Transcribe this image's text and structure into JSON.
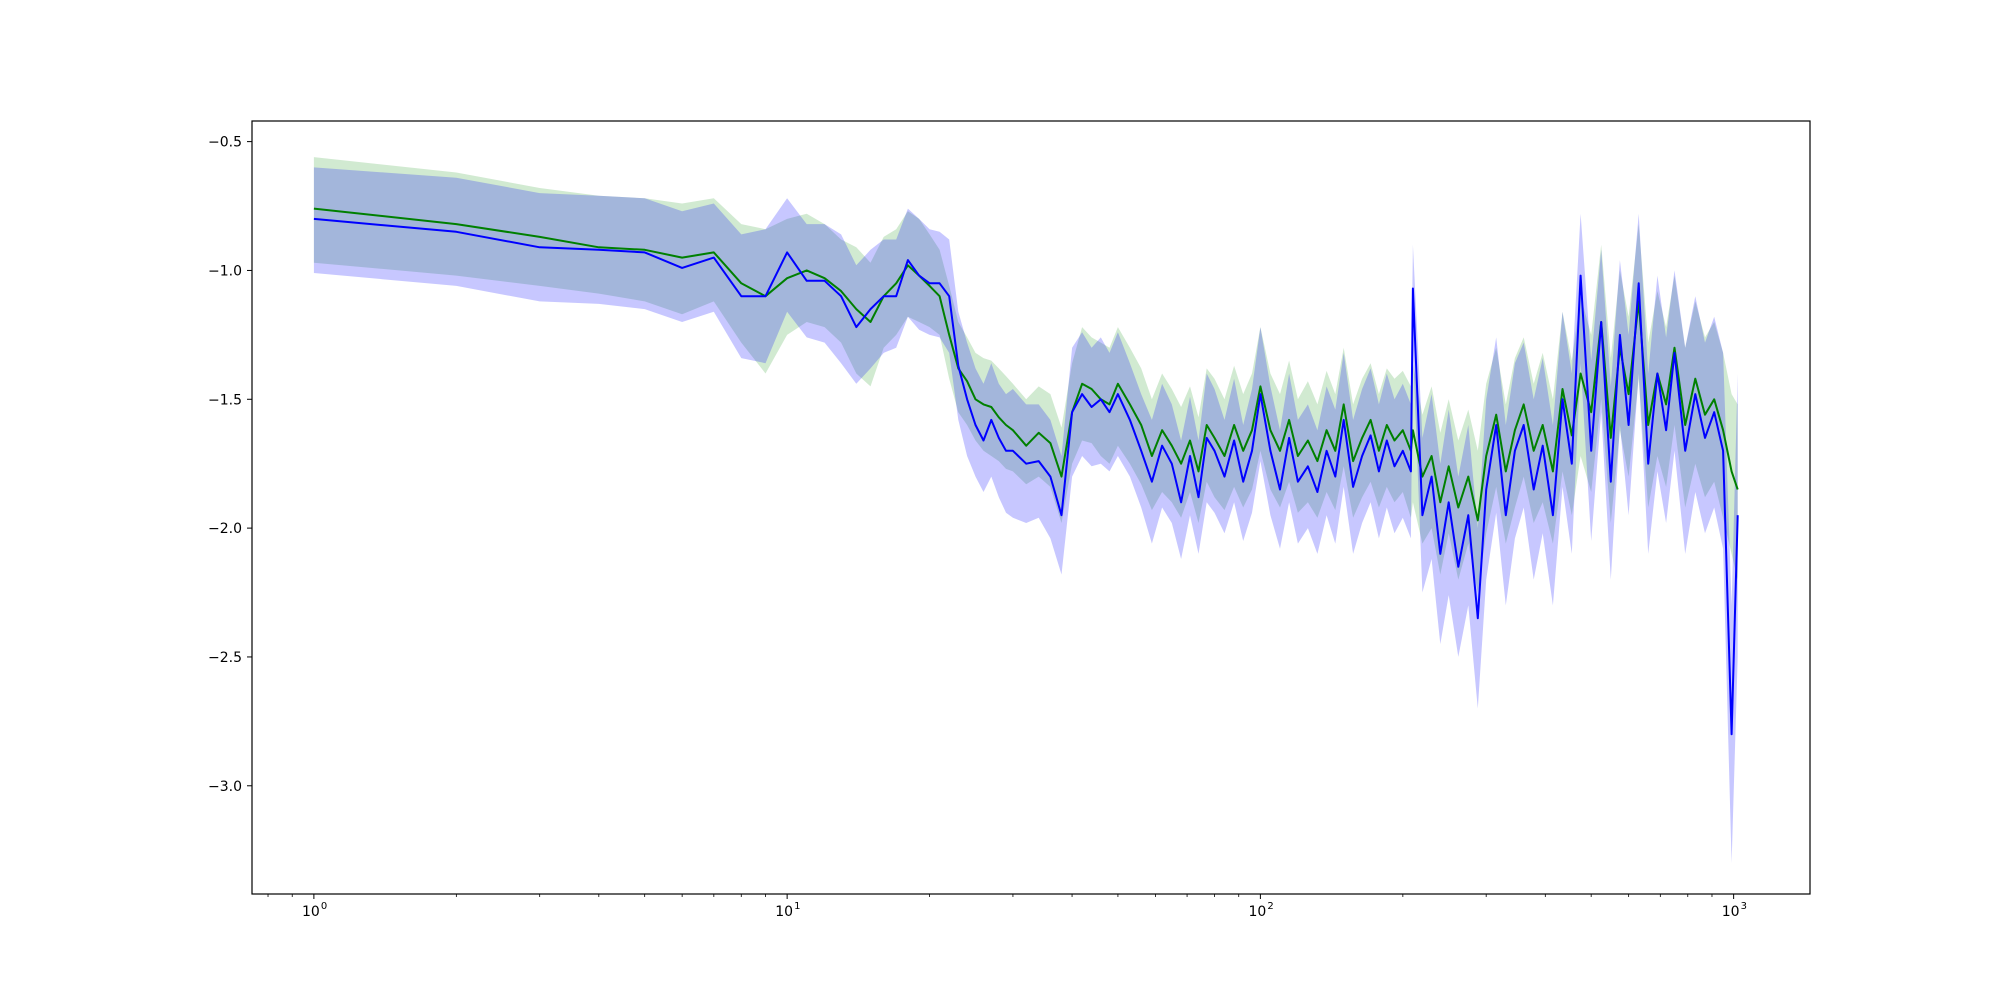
{
  "chart_data": {
    "type": "line",
    "title": "",
    "xlabel": "",
    "ylabel": "",
    "x_scale": "log",
    "xlim": [
      0.74,
      1450
    ],
    "ylim": [
      -3.42,
      -0.42
    ],
    "grid": false,
    "legend": "none",
    "x_ticks": [
      {
        "value": 1,
        "base": "10",
        "exp": "0"
      },
      {
        "value": 10,
        "base": "10",
        "exp": "1"
      },
      {
        "value": 100,
        "base": "10",
        "exp": "2"
      },
      {
        "value": 1000,
        "base": "10",
        "exp": "3"
      }
    ],
    "y_ticks": [
      {
        "value": -0.5,
        "label": "−0.5"
      },
      {
        "value": -1.0,
        "label": "−1.0"
      },
      {
        "value": -1.5,
        "label": "−1.5"
      },
      {
        "value": -2.0,
        "label": "−2.0"
      },
      {
        "value": -2.5,
        "label": "−2.5"
      },
      {
        "value": -3.0,
        "label": "−3.0"
      }
    ],
    "series": [
      {
        "color": "#008000",
        "band_color": "#2ca02c",
        "x": [
          1,
          2,
          3,
          4,
          5,
          6,
          7,
          8,
          9,
          10,
          11,
          12,
          13,
          14,
          15,
          16,
          17,
          18,
          19,
          20,
          21,
          22,
          23,
          24,
          25,
          26,
          27,
          28,
          29,
          30,
          32,
          34,
          36,
          38,
          40,
          42,
          44,
          46,
          48,
          50,
          53,
          56,
          59,
          62,
          65,
          68,
          71,
          74,
          77,
          80,
          84,
          88,
          92,
          96,
          100,
          105,
          110,
          115,
          120,
          126,
          132,
          138,
          144,
          150,
          157,
          164,
          171,
          178,
          185,
          192,
          200,
          208,
          210,
          220,
          230,
          240,
          250,
          262,
          275,
          288,
          300,
          315,
          330,
          345,
          360,
          378,
          395,
          415,
          435,
          455,
          475,
          500,
          525,
          550,
          575,
          600,
          630,
          660,
          690,
          720,
          750,
          790,
          830,
          870,
          910,
          950,
          990,
          1020
        ],
        "y": [
          -0.76,
          -0.82,
          -0.87,
          -0.91,
          -0.92,
          -0.95,
          -0.93,
          -1.05,
          -1.1,
          -1.03,
          -1.0,
          -1.03,
          -1.08,
          -1.15,
          -1.2,
          -1.1,
          -1.05,
          -0.98,
          -1.02,
          -1.06,
          -1.1,
          -1.25,
          -1.38,
          -1.43,
          -1.5,
          -1.52,
          -1.53,
          -1.57,
          -1.6,
          -1.62,
          -1.68,
          -1.63,
          -1.67,
          -1.8,
          -1.55,
          -1.44,
          -1.46,
          -1.5,
          -1.52,
          -1.44,
          -1.52,
          -1.6,
          -1.72,
          -1.62,
          -1.68,
          -1.75,
          -1.66,
          -1.78,
          -1.6,
          -1.65,
          -1.72,
          -1.6,
          -1.7,
          -1.62,
          -1.45,
          -1.62,
          -1.7,
          -1.58,
          -1.72,
          -1.66,
          -1.74,
          -1.62,
          -1.7,
          -1.52,
          -1.74,
          -1.65,
          -1.58,
          -1.7,
          -1.6,
          -1.66,
          -1.62,
          -1.7,
          -1.62,
          -1.8,
          -1.72,
          -1.9,
          -1.76,
          -1.92,
          -1.8,
          -1.97,
          -1.72,
          -1.56,
          -1.78,
          -1.62,
          -1.52,
          -1.7,
          -1.6,
          -1.78,
          -1.46,
          -1.64,
          -1.4,
          -1.55,
          -1.2,
          -1.65,
          -1.3,
          -1.48,
          -1.12,
          -1.6,
          -1.4,
          -1.52,
          -1.3,
          -1.6,
          -1.42,
          -1.56,
          -1.5,
          -1.62,
          -1.78,
          -1.85
        ],
        "lower": [
          -0.97,
          -1.02,
          -1.06,
          -1.09,
          -1.12,
          -1.17,
          -1.12,
          -1.28,
          -1.4,
          -1.25,
          -1.2,
          -1.22,
          -1.28,
          -1.4,
          -1.45,
          -1.3,
          -1.25,
          -1.18,
          -1.2,
          -1.22,
          -1.25,
          -1.42,
          -1.55,
          -1.6,
          -1.66,
          -1.7,
          -1.72,
          -1.74,
          -1.77,
          -1.78,
          -1.83,
          -1.8,
          -1.84,
          -1.98,
          -1.75,
          -1.66,
          -1.67,
          -1.72,
          -1.75,
          -1.68,
          -1.75,
          -1.83,
          -1.93,
          -1.86,
          -1.9,
          -1.96,
          -1.86,
          -1.98,
          -1.82,
          -1.88,
          -1.93,
          -1.84,
          -1.92,
          -1.85,
          -1.7,
          -1.85,
          -1.92,
          -1.82,
          -1.94,
          -1.9,
          -1.96,
          -1.86,
          -1.93,
          -1.76,
          -1.96,
          -1.88,
          -1.82,
          -1.92,
          -1.84,
          -1.9,
          -1.86,
          -1.96,
          -1.9,
          -2.06,
          -2.0,
          -2.18,
          -2.02,
          -2.2,
          -2.06,
          -2.25,
          -2.02,
          -1.84,
          -2.06,
          -1.92,
          -1.8,
          -1.98,
          -1.9,
          -2.06,
          -1.78,
          -1.95,
          -1.72,
          -1.86,
          -1.5,
          -1.98,
          -1.62,
          -1.8,
          -1.42,
          -1.92,
          -1.72,
          -1.84,
          -1.6,
          -1.92,
          -1.75,
          -1.88,
          -1.82,
          -1.96,
          -2.1,
          -2.2
        ],
        "upper": [
          -0.56,
          -0.62,
          -0.68,
          -0.71,
          -0.72,
          -0.74,
          -0.72,
          -0.82,
          -0.84,
          -0.8,
          -0.78,
          -0.82,
          -0.88,
          -0.91,
          -0.97,
          -0.87,
          -0.84,
          -0.77,
          -0.8,
          -0.86,
          -0.92,
          -1.06,
          -1.2,
          -1.26,
          -1.32,
          -1.34,
          -1.35,
          -1.38,
          -1.41,
          -1.44,
          -1.5,
          -1.45,
          -1.48,
          -1.61,
          -1.36,
          -1.22,
          -1.26,
          -1.28,
          -1.3,
          -1.22,
          -1.3,
          -1.38,
          -1.5,
          -1.4,
          -1.46,
          -1.53,
          -1.45,
          -1.57,
          -1.38,
          -1.42,
          -1.5,
          -1.37,
          -1.48,
          -1.4,
          -1.22,
          -1.4,
          -1.48,
          -1.35,
          -1.5,
          -1.43,
          -1.52,
          -1.39,
          -1.48,
          -1.3,
          -1.52,
          -1.42,
          -1.36,
          -1.48,
          -1.38,
          -1.42,
          -1.39,
          -1.45,
          -1.36,
          -1.56,
          -1.45,
          -1.63,
          -1.5,
          -1.66,
          -1.54,
          -1.7,
          -1.44,
          -1.3,
          -1.52,
          -1.34,
          -1.26,
          -1.44,
          -1.32,
          -1.5,
          -1.16,
          -1.35,
          -1.1,
          -1.25,
          -0.9,
          -1.34,
          -1.0,
          -1.18,
          -0.82,
          -1.28,
          -1.08,
          -1.22,
          -1.02,
          -1.3,
          -1.12,
          -1.26,
          -1.2,
          -1.32,
          -1.48,
          -1.52
        ]
      },
      {
        "color": "#0000ff",
        "band_color": "#0000ff",
        "x": [
          1,
          2,
          3,
          4,
          5,
          6,
          7,
          8,
          9,
          10,
          11,
          12,
          13,
          14,
          15,
          16,
          17,
          18,
          19,
          20,
          21,
          22,
          23,
          24,
          25,
          26,
          27,
          28,
          29,
          30,
          32,
          34,
          36,
          38,
          40,
          42,
          44,
          46,
          48,
          50,
          53,
          56,
          59,
          62,
          65,
          68,
          71,
          74,
          77,
          80,
          84,
          88,
          92,
          96,
          100,
          105,
          110,
          115,
          120,
          126,
          132,
          138,
          144,
          150,
          157,
          164,
          171,
          178,
          185,
          192,
          200,
          208,
          210,
          220,
          230,
          240,
          250,
          262,
          275,
          288,
          300,
          315,
          330,
          345,
          360,
          378,
          395,
          415,
          435,
          455,
          475,
          500,
          525,
          550,
          575,
          600,
          630,
          660,
          690,
          720,
          750,
          790,
          830,
          870,
          910,
          950,
          990,
          1020
        ],
        "y": [
          -0.8,
          -0.85,
          -0.91,
          -0.92,
          -0.93,
          -0.99,
          -0.95,
          -1.1,
          -1.1,
          -0.93,
          -1.04,
          -1.04,
          -1.1,
          -1.22,
          -1.15,
          -1.1,
          -1.1,
          -0.96,
          -1.02,
          -1.05,
          -1.05,
          -1.1,
          -1.37,
          -1.5,
          -1.6,
          -1.66,
          -1.58,
          -1.65,
          -1.7,
          -1.7,
          -1.75,
          -1.74,
          -1.8,
          -1.95,
          -1.55,
          -1.48,
          -1.53,
          -1.5,
          -1.55,
          -1.48,
          -1.58,
          -1.7,
          -1.82,
          -1.68,
          -1.75,
          -1.9,
          -1.72,
          -1.88,
          -1.65,
          -1.7,
          -1.8,
          -1.66,
          -1.82,
          -1.7,
          -1.48,
          -1.7,
          -1.85,
          -1.65,
          -1.82,
          -1.76,
          -1.86,
          -1.7,
          -1.8,
          -1.58,
          -1.84,
          -1.72,
          -1.64,
          -1.78,
          -1.66,
          -1.76,
          -1.7,
          -1.78,
          -1.07,
          -1.95,
          -1.8,
          -2.1,
          -1.9,
          -2.15,
          -1.95,
          -2.35,
          -1.85,
          -1.6,
          -1.95,
          -1.7,
          -1.6,
          -1.85,
          -1.68,
          -1.95,
          -1.5,
          -1.75,
          -1.02,
          -1.7,
          -1.2,
          -1.82,
          -1.25,
          -1.6,
          -1.05,
          -1.75,
          -1.4,
          -1.62,
          -1.32,
          -1.7,
          -1.48,
          -1.65,
          -1.55,
          -1.7,
          -2.8,
          -1.95
        ],
        "lower": [
          -1.01,
          -1.06,
          -1.12,
          -1.13,
          -1.15,
          -1.2,
          -1.16,
          -1.34,
          -1.36,
          -1.16,
          -1.26,
          -1.28,
          -1.36,
          -1.44,
          -1.38,
          -1.32,
          -1.3,
          -1.18,
          -1.23,
          -1.25,
          -1.26,
          -1.32,
          -1.58,
          -1.72,
          -1.8,
          -1.86,
          -1.8,
          -1.88,
          -1.94,
          -1.96,
          -1.98,
          -1.96,
          -2.04,
          -2.18,
          -1.8,
          -1.72,
          -1.76,
          -1.75,
          -1.78,
          -1.72,
          -1.8,
          -1.92,
          -2.06,
          -1.92,
          -1.98,
          -2.12,
          -1.95,
          -2.1,
          -1.9,
          -1.94,
          -2.02,
          -1.9,
          -2.05,
          -1.94,
          -1.74,
          -1.95,
          -2.08,
          -1.9,
          -2.06,
          -2.0,
          -2.1,
          -1.95,
          -2.06,
          -1.84,
          -2.1,
          -1.98,
          -1.9,
          -2.04,
          -1.92,
          -2.02,
          -1.96,
          -2.04,
          -1.3,
          -2.25,
          -2.12,
          -2.45,
          -2.26,
          -2.5,
          -2.3,
          -2.7,
          -2.2,
          -1.94,
          -2.3,
          -2.04,
          -1.92,
          -2.2,
          -2.02,
          -2.3,
          -1.84,
          -2.1,
          -1.36,
          -2.05,
          -1.55,
          -2.2,
          -1.6,
          -1.95,
          -1.4,
          -2.1,
          -1.78,
          -1.98,
          -1.7,
          -2.1,
          -1.86,
          -2.02,
          -1.92,
          -2.08,
          -3.3,
          -2.5
        ],
        "upper": [
          -0.6,
          -0.64,
          -0.7,
          -0.71,
          -0.72,
          -0.77,
          -0.74,
          -0.86,
          -0.84,
          -0.72,
          -0.82,
          -0.82,
          -0.86,
          -0.98,
          -0.92,
          -0.88,
          -0.88,
          -0.76,
          -0.8,
          -0.84,
          -0.85,
          -0.88,
          -1.16,
          -1.28,
          -1.38,
          -1.44,
          -1.36,
          -1.44,
          -1.48,
          -1.46,
          -1.52,
          -1.52,
          -1.58,
          -1.72,
          -1.3,
          -1.24,
          -1.3,
          -1.26,
          -1.32,
          -1.24,
          -1.36,
          -1.48,
          -1.58,
          -1.44,
          -1.52,
          -1.66,
          -1.49,
          -1.66,
          -1.4,
          -1.46,
          -1.58,
          -1.42,
          -1.6,
          -1.46,
          -1.22,
          -1.45,
          -1.62,
          -1.4,
          -1.58,
          -1.52,
          -1.62,
          -1.45,
          -1.54,
          -1.32,
          -1.58,
          -1.46,
          -1.38,
          -1.52,
          -1.4,
          -1.5,
          -1.44,
          -1.52,
          -0.9,
          -1.65,
          -1.48,
          -1.75,
          -1.54,
          -1.8,
          -1.6,
          -2.0,
          -1.5,
          -1.26,
          -1.6,
          -1.36,
          -1.28,
          -1.5,
          -1.34,
          -1.6,
          -1.16,
          -1.4,
          -0.78,
          -1.35,
          -0.92,
          -1.45,
          -0.96,
          -1.25,
          -0.78,
          -1.4,
          -1.02,
          -1.26,
          -1.0,
          -1.3,
          -1.1,
          -1.28,
          -1.18,
          -1.32,
          -2.3,
          -1.4
        ]
      }
    ]
  }
}
